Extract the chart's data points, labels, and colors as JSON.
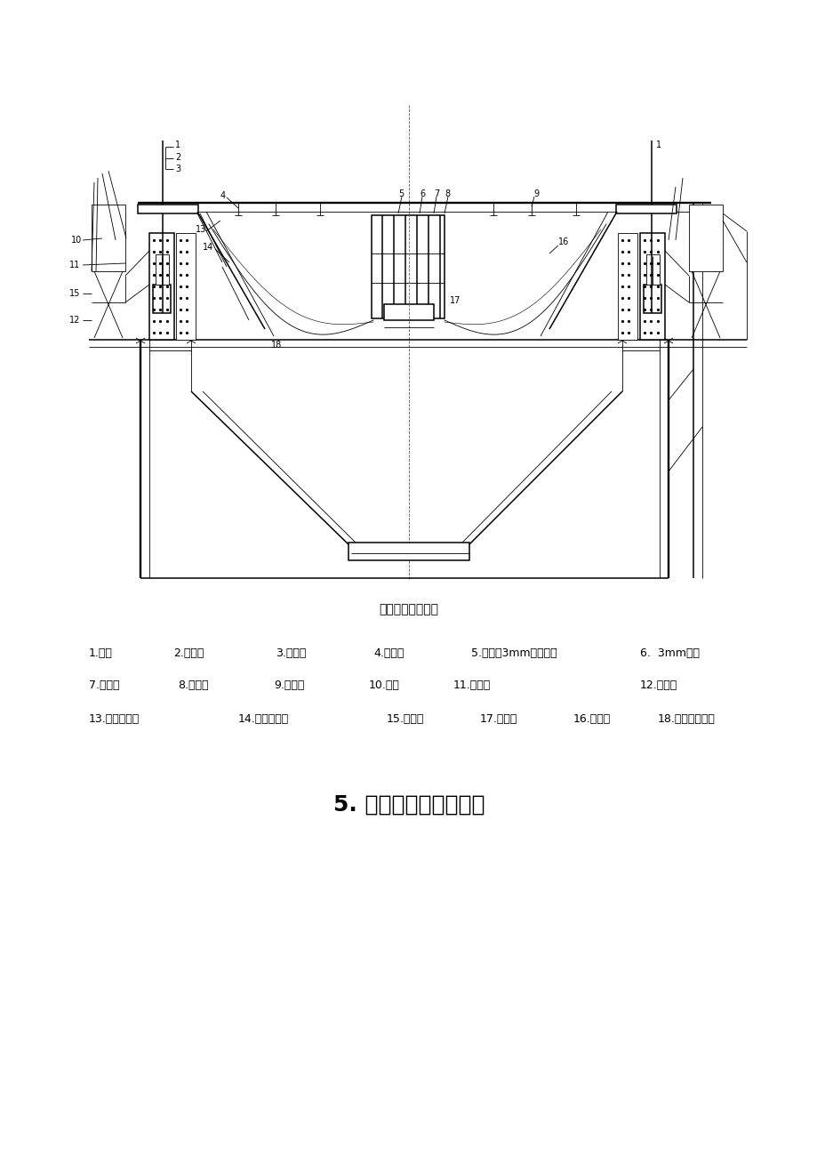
{
  "title_diagram": "立筒仓滑模示意图",
  "section_title": "5. 工艺流程及施工要点",
  "legend_row1_items": [
    [
      "1.",
      "爬杆",
      100
    ],
    [
      "2.",
      "限位器",
      195
    ],
    [
      "3.",
      "千斤顶",
      305
    ],
    [
      "4.",
      "提升架",
      420
    ],
    [
      "5.",
      "销板（3mm）挡板圈",
      535
    ],
    [
      "6.  3mm鐵板",
      "",
      720
    ]
  ],
  "legend_row2_items": [
    [
      "7.",
      "内围圈",
      100
    ],
    [
      "8.",
      "中心圈",
      195
    ],
    [
      "9.",
      "辐射梁",
      305
    ],
    [
      "10.",
      "护栏",
      420
    ],
    [
      "11.",
      "三角架",
      512
    ],
    [
      "12.",
      "外挂架",
      720
    ]
  ],
  "legend_row3_items": [
    [
      "13.",
      "提升架横梁",
      100
    ],
    [
      "14.",
      "模板内围梁",
      270
    ],
    [
      "15.",
      "外围圈",
      435
    ],
    [
      "17.",
      "安全网",
      540
    ],
    [
      "16.",
      "钉拉杆",
      645
    ],
    [
      "18.",
      "铺板及踏脚板",
      745
    ]
  ],
  "bg_color": "#ffffff"
}
